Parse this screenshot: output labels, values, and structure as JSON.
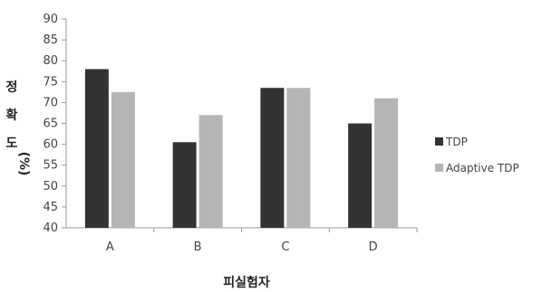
{
  "chart_data": {
    "type": "bar",
    "categories": [
      "A",
      "B",
      "C",
      "D"
    ],
    "series": [
      {
        "name": "TDP",
        "values": [
          78,
          60.5,
          73.5,
          65
        ],
        "color": "#333333"
      },
      {
        "name": "Adaptive TDP",
        "values": [
          72.5,
          67,
          73.5,
          71
        ],
        "color": "#b5b5b5"
      }
    ],
    "title": "",
    "xlabel": "피실험자",
    "ylabel": [
      "정",
      "확",
      "도",
      "(%)"
    ],
    "yticks": [
      40,
      45,
      50,
      55,
      60,
      65,
      70,
      75,
      80,
      85,
      90
    ],
    "ylim": [
      40,
      90
    ],
    "grid": false,
    "legend_position": "right"
  }
}
